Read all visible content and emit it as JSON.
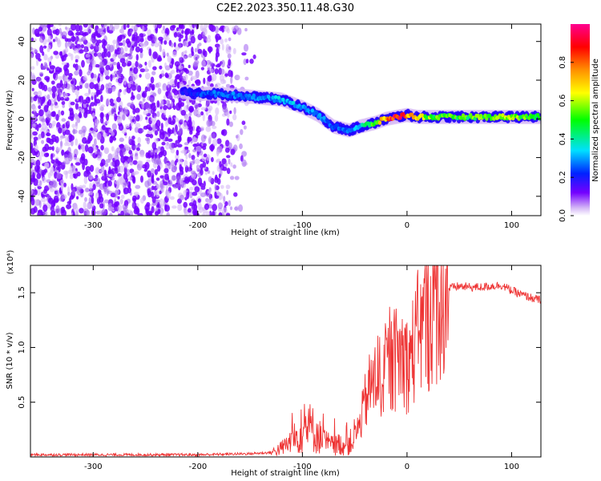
{
  "title": "C2E2.2023.350.11.48.G30",
  "chart_data": [
    {
      "type": "heatmap",
      "xlabel": "Height of straight line (km)",
      "ylabel": "Frequency (Hz)",
      "xlim": [
        -360,
        128
      ],
      "ylim": [
        -50,
        49
      ],
      "x_ticks": [
        -300,
        -200,
        -100,
        0,
        100
      ],
      "y_ticks": [
        -40,
        -20,
        0,
        20,
        40
      ],
      "noise_region": {
        "x_range": [
          -360,
          -145
        ],
        "y_range": [
          -50,
          49
        ]
      },
      "signal_ridge": {
        "x": [
          -215,
          -200,
          -180,
          -160,
          -140,
          -120,
          -100,
          -85,
          -70,
          -55,
          -45,
          -30,
          -20,
          -10,
          0,
          10,
          30,
          60,
          90,
          128
        ],
        "y_hz": [
          14,
          13,
          13,
          12,
          11,
          10,
          6,
          2,
          -4,
          -6,
          -4,
          -2,
          0,
          1,
          2,
          1,
          1,
          1,
          1,
          1
        ],
        "amplitude": [
          0.2,
          0.25,
          0.3,
          0.3,
          0.3,
          0.35,
          0.35,
          0.3,
          0.3,
          0.3,
          0.35,
          0.55,
          0.75,
          0.9,
          0.8,
          0.6,
          0.5,
          0.5,
          0.55,
          0.5
        ]
      },
      "colorbar": {
        "label": "Normalized spectral amplitude",
        "range": [
          0,
          1
        ],
        "ticks": [
          0.0,
          0.2,
          0.4,
          0.6,
          0.8
        ],
        "colormap": [
          "#d5b8f6",
          "#7400ff",
          "#0022ff",
          "#00e0ff",
          "#00ff00",
          "#ffff00",
          "#ff9000",
          "#ff0000",
          "#ff0090"
        ]
      }
    },
    {
      "type": "line",
      "xlabel": "Height of straight line (km)",
      "ylabel": "SNR (10 * v/v)",
      "y_multiplier": "(x10⁴)",
      "xlim": [
        -360,
        128
      ],
      "ylim": [
        0,
        1.75
      ],
      "x_ticks": [
        -300,
        -200,
        -100,
        0,
        100
      ],
      "y_ticks": [
        0.5,
        1.0,
        1.5
      ],
      "y_tick_labels": [
        "0.5",
        "1.0",
        "1.5"
      ],
      "color": "#ee3333",
      "series": [
        {
          "x": [
            -360,
            -300,
            -250,
            -200,
            -150,
            -130,
            -120,
            -110,
            -100,
            -95,
            -90,
            -85,
            -80,
            -75,
            -70,
            -65,
            -60,
            -55,
            -50,
            -45,
            -40,
            -35,
            -30,
            -25,
            -20,
            -15,
            -10,
            -5,
            0,
            5,
            10,
            15,
            20,
            25,
            30,
            35,
            40,
            50,
            60,
            70,
            80,
            90,
            100,
            110,
            120,
            128
          ],
          "y": [
            0.02,
            0.02,
            0.02,
            0.02,
            0.03,
            0.04,
            0.08,
            0.15,
            0.22,
            0.28,
            0.25,
            0.2,
            0.15,
            0.12,
            0.1,
            0.12,
            0.1,
            0.12,
            0.2,
            0.3,
            0.5,
            0.65,
            0.7,
            0.75,
            0.8,
            0.85,
            0.9,
            0.95,
            0.85,
            0.95,
            1.1,
            1.2,
            1.25,
            1.35,
            1.45,
            1.5,
            1.54,
            1.56,
            1.55,
            1.55,
            1.56,
            1.57,
            1.52,
            1.48,
            1.45,
            1.43
          ]
        }
      ]
    }
  ]
}
